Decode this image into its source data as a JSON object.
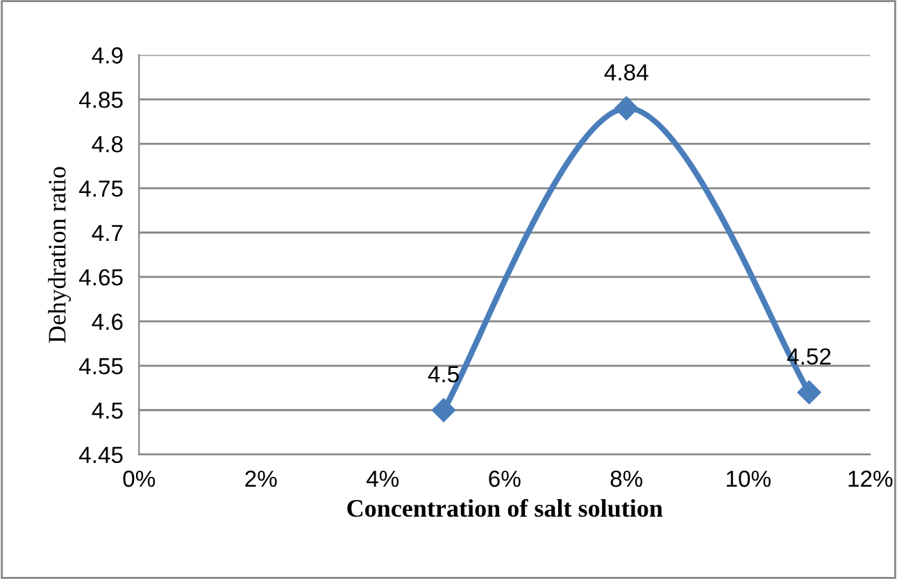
{
  "chart_data": {
    "type": "line",
    "xlabel": "Concentration of salt solution",
    "ylabel": "Dehydration ratio",
    "x": [
      5,
      8,
      11
    ],
    "series": [
      {
        "color": "#4a7ebb",
        "values": [
          4.5,
          4.84,
          4.52
        ]
      }
    ],
    "xlim": [
      0,
      12
    ],
    "xticks": [
      {
        "value": 0,
        "label": "0%"
      },
      {
        "value": 2,
        "label": "2%"
      },
      {
        "value": 4,
        "label": "4%"
      },
      {
        "value": 6,
        "label": "6%"
      },
      {
        "value": 8,
        "label": "8%"
      },
      {
        "value": 10,
        "label": "10%"
      },
      {
        "value": 12,
        "label": "12%"
      }
    ],
    "ylim": [
      4.45,
      4.9
    ],
    "yticks": [
      4.45,
      4.5,
      4.55,
      4.6,
      4.65,
      4.7,
      4.75,
      4.8,
      4.85,
      4.9
    ],
    "grid": "y",
    "marker": "diamond",
    "line_style": "solid",
    "data_labels": true,
    "legend": false
  }
}
